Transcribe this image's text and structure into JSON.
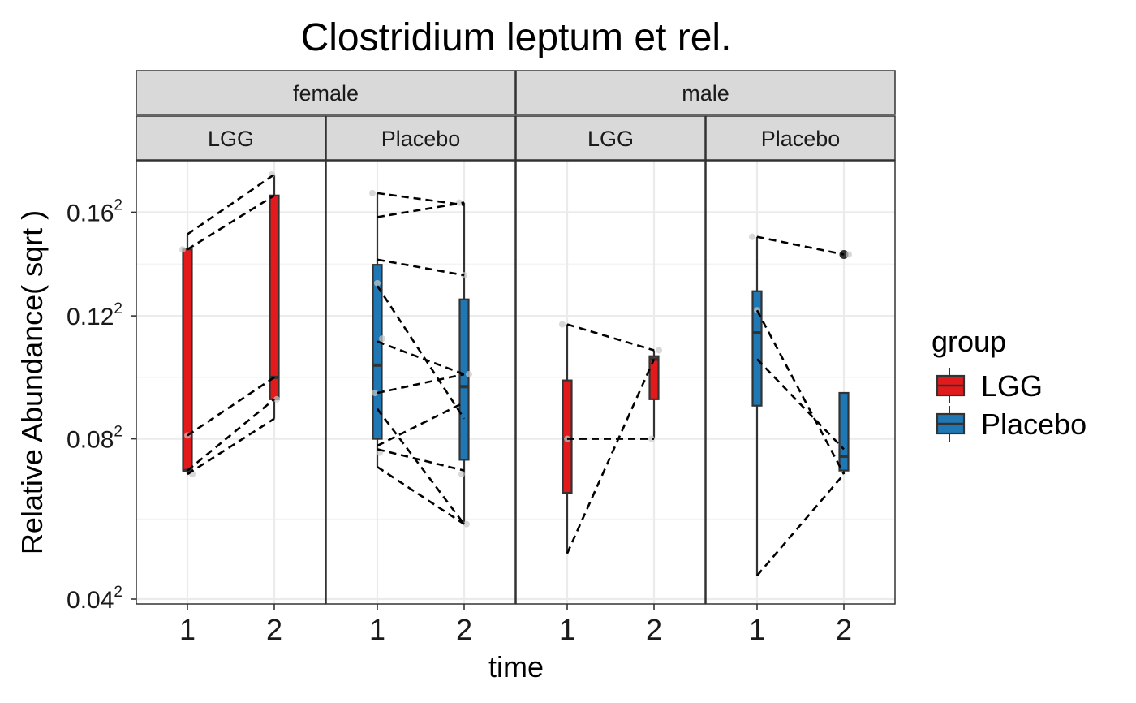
{
  "chart_data": {
    "type": "box",
    "title": "Clostridium leptum et rel.",
    "xlabel": "time",
    "ylabel": "Relative Abundance( sqrt )",
    "y_scale": "sqrt",
    "y_ticks": [
      {
        "value": 0.04,
        "base": "0.04",
        "sup": "2"
      },
      {
        "value": 0.08,
        "base": "0.08",
        "sup": "2"
      },
      {
        "value": 0.12,
        "base": "0.12",
        "sup": "2"
      },
      {
        "value": 0.16,
        "base": "0.16",
        "sup": "2"
      }
    ],
    "y_range_sqrt": [
      0.039,
      0.182
    ],
    "x_categories": [
      "1",
      "2"
    ],
    "facet_rows": [
      {
        "label": "female",
        "panels": [
          0,
          1
        ]
      },
      {
        "label": "male",
        "panels": [
          2,
          3
        ]
      }
    ],
    "legend": {
      "title": "group",
      "position": "right",
      "entries": [
        {
          "label": "LGG",
          "color": "#e31a1c"
        },
        {
          "label": "Placebo",
          "color": "#1f78b4"
        }
      ]
    },
    "grid": true,
    "panels": [
      {
        "sex": "female",
        "group": "LGG",
        "color": "#e31a1c",
        "boxes": [
          {
            "time": "1",
            "min": 0.07,
            "q1": 0.071,
            "median": 0.071,
            "q3": 0.145,
            "max": 0.151,
            "outliers": []
          },
          {
            "time": "2",
            "min": 0.086,
            "q1": 0.092,
            "median": 0.099,
            "q3": 0.167,
            "max": 0.176,
            "outliers": []
          }
        ],
        "points": [
          {
            "time": "1",
            "value": 0.145
          },
          {
            "time": "1",
            "value": 0.081
          },
          {
            "time": "1",
            "value": 0.07
          },
          {
            "time": "2",
            "value": 0.176
          },
          {
            "time": "2",
            "value": 0.092
          }
        ],
        "pairs": [
          [
            0.151,
            0.176
          ],
          [
            0.145,
            0.167
          ],
          [
            0.081,
            0.099
          ],
          [
            0.071,
            0.092
          ],
          [
            0.07,
            0.086
          ]
        ]
      },
      {
        "sex": "female",
        "group": "Placebo",
        "color": "#1f78b4",
        "boxes": [
          {
            "time": "1",
            "min": 0.072,
            "q1": 0.08,
            "median": 0.103,
            "q3": 0.139,
            "max": 0.168,
            "outliers": []
          },
          {
            "time": "2",
            "min": 0.057,
            "q1": 0.074,
            "median": 0.096,
            "q3": 0.126,
            "max": 0.164,
            "outliers": []
          }
        ],
        "points": [
          {
            "time": "1",
            "value": 0.168
          },
          {
            "time": "1",
            "value": 0.132
          },
          {
            "time": "1",
            "value": 0.112
          },
          {
            "time": "1",
            "value": 0.094
          },
          {
            "time": "1",
            "value": 0.076
          },
          {
            "time": "2",
            "value": 0.164
          },
          {
            "time": "2",
            "value": 0.135
          },
          {
            "time": "2",
            "value": 0.1
          },
          {
            "time": "2",
            "value": 0.07
          },
          {
            "time": "2",
            "value": 0.057
          }
        ],
        "pairs": [
          [
            0.168,
            0.163
          ],
          [
            0.158,
            0.164
          ],
          [
            0.141,
            0.135
          ],
          [
            0.131,
            0.086
          ],
          [
            0.111,
            0.1
          ],
          [
            0.094,
            0.1
          ],
          [
            0.089,
            0.057
          ],
          [
            0.078,
            0.091
          ],
          [
            0.077,
            0.071
          ],
          [
            0.072,
            0.057
          ]
        ]
      },
      {
        "sex": "male",
        "group": "LGG",
        "color": "#e31a1c",
        "boxes": [
          {
            "time": "1",
            "min": 0.05,
            "q1": 0.065,
            "median": 0.08,
            "q3": 0.098,
            "max": 0.117,
            "outliers": []
          },
          {
            "time": "2",
            "min": 0.08,
            "q1": 0.092,
            "median": 0.105,
            "q3": 0.106,
            "max": 0.108,
            "outliers": []
          }
        ],
        "points": [
          {
            "time": "1",
            "value": 0.117
          },
          {
            "time": "1",
            "value": 0.08
          },
          {
            "time": "2",
            "value": 0.108
          },
          {
            "time": "2",
            "value": 0.08
          }
        ],
        "pairs": [
          [
            0.117,
            0.108
          ],
          [
            0.08,
            0.08
          ],
          [
            0.05,
            0.105
          ]
        ]
      },
      {
        "sex": "male",
        "group": "Placebo",
        "color": "#1f78b4",
        "boxes": [
          {
            "time": "1",
            "min": 0.045,
            "q1": 0.09,
            "median": 0.114,
            "q3": 0.129,
            "max": 0.15,
            "outliers": []
          },
          {
            "time": "2",
            "min": 0.07,
            "q1": 0.071,
            "median": 0.075,
            "q3": 0.094,
            "max": 0.094,
            "outliers": [
              0.143
            ]
          }
        ],
        "points": [
          {
            "time": "1",
            "value": 0.15
          },
          {
            "time": "1",
            "value": 0.122
          },
          {
            "time": "2",
            "value": 0.143
          }
        ],
        "pairs": [
          [
            0.15,
            0.143
          ],
          [
            0.122,
            0.07
          ],
          [
            0.105,
            0.077
          ],
          [
            0.045,
            0.07
          ]
        ]
      }
    ]
  }
}
